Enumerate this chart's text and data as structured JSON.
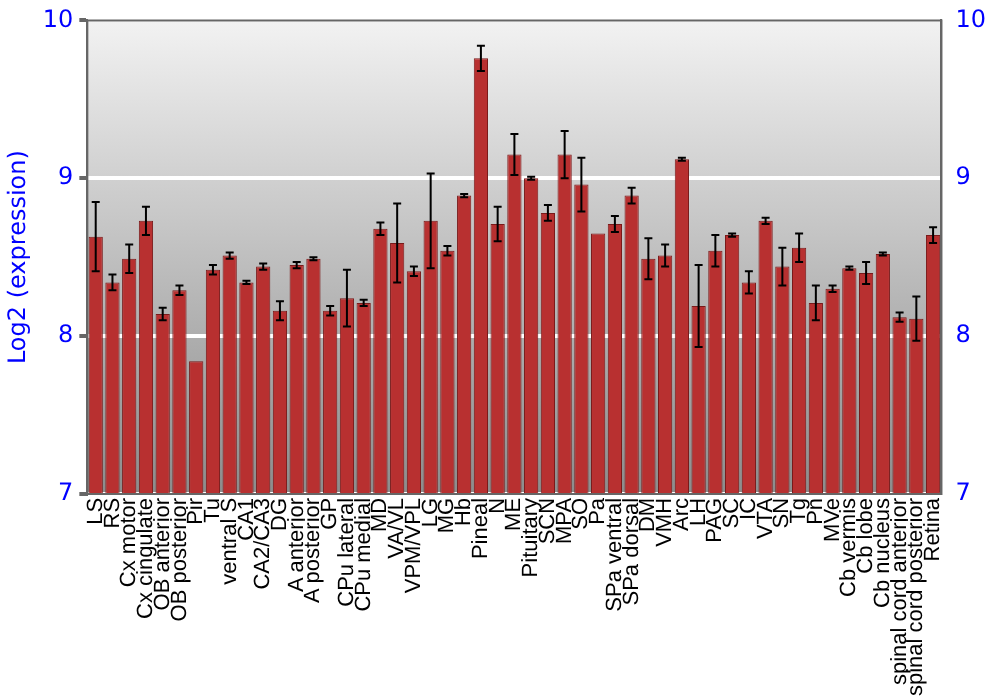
{
  "chart_data": {
    "type": "bar",
    "ylabel": "Log2 (expression)",
    "categories": [
      "LS",
      "RS",
      "Cx motor",
      "Cx cingulate",
      "OB anterior",
      "OB posterior",
      "Pir",
      "Tu",
      "ventral S",
      "CA1",
      "CA2/CA3",
      "DG",
      "A anterior",
      "A posterior",
      "GP",
      "CPu lateral",
      "CPu medial",
      "MD",
      "VA/VL",
      "VPM/VPL",
      "LG",
      "MG",
      "Hb",
      "Pineal",
      "N",
      "ME",
      "Pituitary",
      "SCN",
      "MPA",
      "SO",
      "Pa",
      "SPa ventral",
      "SPa dorsal",
      "DM",
      "VMH",
      "Arc",
      "LH",
      "PAG",
      "SC",
      "IC",
      "VTA",
      "SN",
      "Tg",
      "Pn",
      "MVe",
      "Cb vermis",
      "Cb lobe",
      "Cb nucleus",
      "spinal cord anterior",
      "spinal cord posterior",
      "Retina"
    ],
    "values": [
      8.63,
      8.34,
      8.49,
      8.73,
      8.14,
      8.29,
      7.84,
      8.42,
      8.51,
      8.34,
      8.44,
      8.16,
      8.45,
      8.49,
      8.16,
      8.24,
      8.21,
      8.68,
      8.59,
      8.41,
      8.73,
      8.54,
      8.89,
      9.76,
      8.71,
      9.15,
      9.0,
      8.78,
      9.15,
      8.96,
      8.65,
      8.71,
      8.89,
      8.49,
      8.51,
      9.12,
      8.19,
      8.54,
      8.64,
      8.34,
      8.73,
      8.44,
      8.56,
      8.21,
      8.3,
      8.43,
      8.4,
      8.52,
      8.12,
      8.11,
      8.64
    ],
    "errors": [
      0.22,
      0.05,
      0.09,
      0.09,
      0.04,
      0.03,
      null,
      0.03,
      0.02,
      0.01,
      0.02,
      0.06,
      0.02,
      0.01,
      0.03,
      0.18,
      0.02,
      0.04,
      0.25,
      0.03,
      0.3,
      0.03,
      0.01,
      0.08,
      0.11,
      0.13,
      0.01,
      0.05,
      0.15,
      0.17,
      null,
      0.05,
      0.05,
      0.13,
      0.07,
      0.01,
      0.26,
      0.1,
      0.01,
      0.07,
      0.02,
      0.12,
      0.09,
      0.11,
      0.02,
      0.01,
      0.07,
      0.01,
      0.03,
      0.14,
      0.05
    ],
    "color": "#b83030",
    "ylim": [
      7,
      10
    ],
    "yticks": [
      7,
      8,
      9,
      10
    ],
    "y2lim": [
      7,
      10
    ],
    "y2ticks": [
      7,
      8,
      9,
      10
    ],
    "grid": "y",
    "legend": false
  }
}
